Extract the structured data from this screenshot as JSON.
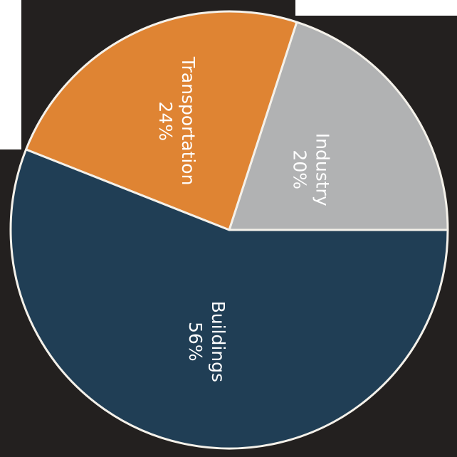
{
  "chart_data": {
    "type": "pie",
    "categories": [
      "Industry",
      "Transportation",
      "Buildings"
    ],
    "values": [
      20,
      24,
      56
    ],
    "value_labels": [
      "20%",
      "24%",
      "56%"
    ],
    "colors": [
      "#b1b2b3",
      "#df8433",
      "#203e55"
    ],
    "slice_border_color": "#f4f1ea",
    "background_color": "#23201f",
    "label_color": "#ffffff",
    "start_angle_deg": 0,
    "direction": "counterclockwise",
    "label_orientation": "rotated 90 degrees clockwise"
  }
}
